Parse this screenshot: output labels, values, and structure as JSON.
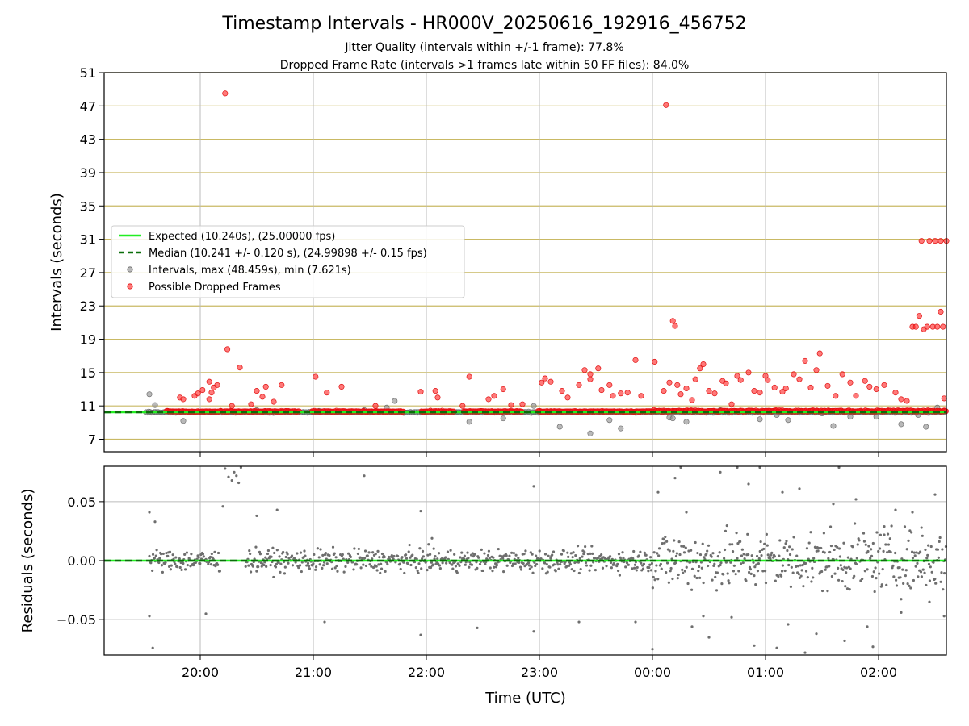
{
  "chart_data": [
    {
      "type": "scatter",
      "title": "Timestamp Intervals - HR000V_20250616_192916_456752",
      "subtitle_line1": "Jitter Quality (intervals within +/-1 frame): 77.8%",
      "subtitle_line2": "Dropped Frame Rate (intervals >1 frames late within 50 FF files): 84.0%",
      "xlabel": "",
      "ylabel": "Intervals (seconds)",
      "xlim_hours": [
        19.15,
        26.6
      ],
      "ylim": [
        5.5,
        51
      ],
      "y_ticks": [
        7,
        11,
        15,
        19,
        23,
        27,
        31,
        35,
        39,
        43,
        47,
        51
      ],
      "grid": "horizontal lines at y ticks (khaki), vertical at x ticks (gray)",
      "legend_position": "center-left",
      "legend": [
        "Expected (10.240s), (25.00000 fps)",
        "Median (10.241 +/- 0.120 s), (24.99898 +/- 0.15 fps)",
        "Intervals, max (48.459s), min (7.621s)",
        "Possible Dropped Frames"
      ],
      "expected_interval": 10.24,
      "median_interval": 10.241,
      "dropped_frames": [
        [
          19.82,
          12.0
        ],
        [
          19.85,
          11.8
        ],
        [
          19.95,
          12.2
        ],
        [
          19.98,
          12.5
        ],
        [
          20.02,
          12.9
        ],
        [
          20.08,
          11.8
        ],
        [
          20.08,
          13.9
        ],
        [
          20.1,
          12.6
        ],
        [
          20.12,
          13.2
        ],
        [
          20.15,
          13.5
        ],
        [
          20.22,
          48.5
        ],
        [
          20.24,
          17.8
        ],
        [
          20.28,
          11.0
        ],
        [
          20.35,
          15.6
        ],
        [
          20.45,
          11.2
        ],
        [
          20.5,
          12.8
        ],
        [
          20.55,
          12.1
        ],
        [
          20.58,
          13.3
        ],
        [
          20.65,
          11.5
        ],
        [
          20.72,
          13.5
        ],
        [
          21.02,
          14.5
        ],
        [
          21.12,
          12.6
        ],
        [
          21.25,
          13.3
        ],
        [
          21.55,
          11.0
        ],
        [
          21.95,
          12.7
        ],
        [
          22.08,
          12.8
        ],
        [
          22.1,
          12.0
        ],
        [
          22.32,
          11.0
        ],
        [
          22.38,
          14.5
        ],
        [
          22.55,
          11.8
        ],
        [
          22.6,
          12.2
        ],
        [
          22.68,
          13.0
        ],
        [
          22.75,
          11.1
        ],
        [
          22.85,
          11.2
        ],
        [
          23.02,
          13.8
        ],
        [
          23.05,
          14.3
        ],
        [
          23.1,
          13.9
        ],
        [
          23.2,
          12.8
        ],
        [
          23.25,
          12.0
        ],
        [
          23.35,
          13.5
        ],
        [
          23.4,
          15.3
        ],
        [
          23.45,
          14.8
        ],
        [
          23.45,
          14.2
        ],
        [
          23.52,
          15.5
        ],
        [
          23.55,
          12.9
        ],
        [
          23.62,
          13.5
        ],
        [
          23.65,
          12.2
        ],
        [
          23.72,
          12.5
        ],
        [
          23.78,
          12.6
        ],
        [
          23.85,
          16.5
        ],
        [
          23.9,
          12.2
        ],
        [
          24.02,
          16.3
        ],
        [
          24.1,
          12.8
        ],
        [
          24.12,
          47.1
        ],
        [
          24.15,
          13.8
        ],
        [
          24.18,
          21.2
        ],
        [
          24.2,
          20.6
        ],
        [
          24.22,
          13.5
        ],
        [
          24.25,
          12.4
        ],
        [
          24.3,
          13.1
        ],
        [
          24.35,
          11.7
        ],
        [
          24.38,
          14.2
        ],
        [
          24.42,
          15.5
        ],
        [
          24.45,
          16.0
        ],
        [
          24.5,
          12.8
        ],
        [
          24.55,
          12.5
        ],
        [
          24.62,
          14.0
        ],
        [
          24.65,
          13.7
        ],
        [
          24.7,
          11.2
        ],
        [
          24.75,
          14.6
        ],
        [
          24.78,
          14.1
        ],
        [
          24.85,
          15.0
        ],
        [
          24.9,
          12.8
        ],
        [
          24.95,
          12.6
        ],
        [
          25.0,
          14.6
        ],
        [
          25.02,
          14.1
        ],
        [
          25.08,
          13.2
        ],
        [
          25.15,
          12.7
        ],
        [
          25.18,
          13.1
        ],
        [
          25.25,
          14.8
        ],
        [
          25.3,
          14.2
        ],
        [
          25.35,
          16.4
        ],
        [
          25.4,
          13.2
        ],
        [
          25.45,
          15.3
        ],
        [
          25.48,
          17.3
        ],
        [
          25.55,
          13.4
        ],
        [
          25.62,
          12.2
        ],
        [
          25.68,
          14.8
        ],
        [
          25.75,
          13.8
        ],
        [
          25.8,
          12.2
        ],
        [
          25.88,
          14.0
        ],
        [
          25.92,
          13.3
        ],
        [
          25.98,
          13.0
        ],
        [
          26.05,
          13.5
        ],
        [
          26.15,
          12.6
        ],
        [
          26.2,
          11.8
        ],
        [
          26.25,
          11.6
        ],
        [
          26.3,
          20.5
        ],
        [
          26.33,
          20.5
        ],
        [
          26.36,
          21.8
        ],
        [
          26.38,
          30.8
        ],
        [
          26.4,
          20.2
        ],
        [
          26.43,
          20.5
        ],
        [
          26.45,
          30.8
        ],
        [
          26.48,
          20.5
        ],
        [
          26.5,
          30.8
        ],
        [
          26.52,
          20.5
        ],
        [
          26.55,
          30.8
        ],
        [
          26.55,
          22.3
        ],
        [
          26.57,
          20.5
        ],
        [
          26.58,
          11.9
        ],
        [
          26.6,
          30.8
        ]
      ],
      "intervals_outliers": [
        [
          19.55,
          12.4
        ],
        [
          19.6,
          11.1
        ],
        [
          19.85,
          9.2
        ],
        [
          20.5,
          10.5
        ],
        [
          21.05,
          10.4
        ],
        [
          21.45,
          10.5
        ],
        [
          21.65,
          10.8
        ],
        [
          21.72,
          11.6
        ],
        [
          22.38,
          9.1
        ],
        [
          22.68,
          9.5
        ],
        [
          22.95,
          11.0
        ],
        [
          23.18,
          8.5
        ],
        [
          23.45,
          7.7
        ],
        [
          23.62,
          9.3
        ],
        [
          23.72,
          8.3
        ],
        [
          24.15,
          9.6
        ],
        [
          24.18,
          9.5
        ],
        [
          24.3,
          9.1
        ],
        [
          24.6,
          10.5
        ],
        [
          24.95,
          9.4
        ],
        [
          25.1,
          9.9
        ],
        [
          25.2,
          9.3
        ],
        [
          25.5,
          10.1
        ],
        [
          25.6,
          8.6
        ],
        [
          25.75,
          9.7
        ],
        [
          25.98,
          9.7
        ],
        [
          26.2,
          8.8
        ],
        [
          26.35,
          9.9
        ],
        [
          26.42,
          8.5
        ],
        [
          26.52,
          10.8
        ]
      ]
    },
    {
      "type": "scatter",
      "xlabel": "Time (UTC)",
      "ylabel": "Residuals (seconds)",
      "ylim": [
        -0.08,
        0.08
      ],
      "y_ticks": [
        0.05,
        0.0,
        -0.05
      ],
      "y_tick_labels": [
        "0.05",
        "0.00",
        "−0.05"
      ],
      "x_ticks": [
        20,
        21,
        22,
        23,
        24,
        25,
        26
      ],
      "x_tick_labels": [
        "20:00",
        "21:00",
        "22:00",
        "23:00",
        "00:00",
        "01:00",
        "02:00"
      ],
      "grid": true,
      "residual_points": [
        [
          19.55,
          -0.047
        ],
        [
          19.58,
          -0.074
        ],
        [
          19.6,
          0.033
        ],
        [
          19.55,
          0.041
        ],
        [
          20.22,
          0.078
        ],
        [
          20.25,
          0.071
        ],
        [
          20.28,
          0.068
        ],
        [
          20.3,
          0.075
        ],
        [
          20.32,
          0.072
        ],
        [
          20.34,
          0.066
        ],
        [
          20.36,
          0.079
        ],
        [
          20.2,
          0.046
        ],
        [
          20.05,
          -0.045
        ],
        [
          20.5,
          0.038
        ],
        [
          20.68,
          0.043
        ],
        [
          21.1,
          -0.052
        ],
        [
          21.45,
          0.072
        ],
        [
          21.95,
          0.042
        ],
        [
          21.95,
          -0.063
        ],
        [
          22.05,
          0.019
        ],
        [
          22.45,
          -0.057
        ],
        [
          22.95,
          -0.06
        ],
        [
          22.95,
          0.063
        ],
        [
          23.35,
          -0.052
        ],
        [
          23.85,
          -0.052
        ],
        [
          24.0,
          -0.075
        ],
        [
          24.05,
          0.058
        ],
        [
          24.2,
          0.07
        ],
        [
          24.25,
          0.079
        ],
        [
          24.3,
          0.041
        ],
        [
          24.35,
          -0.056
        ],
        [
          24.45,
          -0.047
        ],
        [
          24.5,
          -0.065
        ],
        [
          24.6,
          0.075
        ],
        [
          24.7,
          -0.048
        ],
        [
          24.75,
          0.079
        ],
        [
          24.85,
          0.065
        ],
        [
          24.9,
          -0.072
        ],
        [
          24.95,
          0.079
        ],
        [
          25.1,
          -0.074
        ],
        [
          25.15,
          0.058
        ],
        [
          25.2,
          -0.054
        ],
        [
          25.3,
          0.061
        ],
        [
          25.35,
          -0.078
        ],
        [
          25.45,
          -0.062
        ],
        [
          25.6,
          0.048
        ],
        [
          25.65,
          0.079
        ],
        [
          25.7,
          -0.068
        ],
        [
          25.8,
          0.052
        ],
        [
          25.9,
          -0.056
        ],
        [
          25.95,
          -0.073
        ],
        [
          26.05,
          0.029
        ],
        [
          26.15,
          0.043
        ],
        [
          26.2,
          -0.044
        ],
        [
          26.3,
          0.041
        ],
        [
          26.38,
          0.028
        ],
        [
          26.45,
          -0.035
        ],
        [
          26.5,
          0.056
        ],
        [
          26.58,
          -0.047
        ]
      ]
    }
  ],
  "colors": {
    "expected_line": "#22ee22",
    "median_line": "#0a6e0a",
    "intervals_points": "#8a8a8a",
    "dropped_points": "#ff2020",
    "residual_points": "#6e6e6e",
    "h_grid_top": "#c9b964",
    "v_grid": "#bbbbbb"
  }
}
